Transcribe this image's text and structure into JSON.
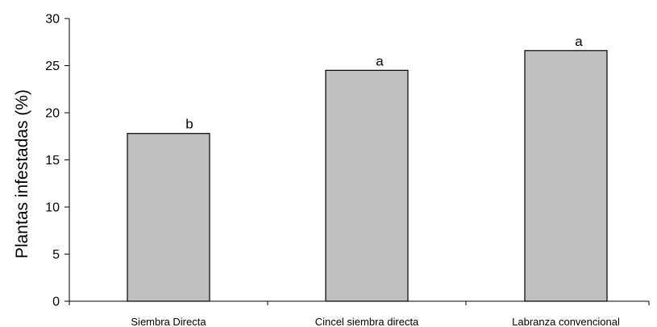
{
  "chart_data": {
    "type": "bar",
    "title": "",
    "xlabel": "",
    "ylabel": "Plantas infestadas (%)",
    "ylim": [
      0,
      30
    ],
    "yticks": [
      0,
      5,
      10,
      15,
      20,
      25,
      30
    ],
    "categories": [
      "Siembra Directa",
      "Cincel siembra directa",
      "Labranza convencional"
    ],
    "values": [
      17.8,
      24.5,
      26.6
    ],
    "bar_labels": [
      "b",
      "a",
      "a"
    ],
    "bar_color": "#c0c0c0",
    "grid": false,
    "legend": "none"
  }
}
